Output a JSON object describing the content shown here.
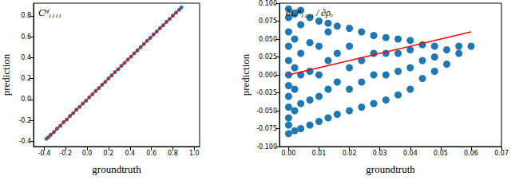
{
  "chart_data": [
    {
      "type": "scatter",
      "title": "Cᴴ₁₁₁₁",
      "xlabel": "groundtruth",
      "ylabel": "prediction",
      "xlim": [
        -0.5,
        1.05
      ],
      "ylim": [
        -0.45,
        0.92
      ],
      "xticks": [
        -0.4,
        -0.2,
        {
          "value": 0,
          "label": "0.0"
        },
        0.2,
        0.4,
        0.6,
        0.8,
        {
          "value": 1,
          "label": "1.0"
        }
      ],
      "yticks": [
        -0.4,
        -0.2,
        {
          "value": 0,
          "label": "0.0"
        },
        0.2,
        0.4,
        0.6,
        0.8
      ],
      "grid": false,
      "series": [
        {
          "type": "scatter",
          "color": "#1f77b4",
          "marker": "circle",
          "x": [
            -0.38,
            -0.36,
            -0.34,
            -0.31,
            -0.28,
            -0.25,
            -0.22,
            -0.19,
            -0.16,
            -0.13,
            -0.1,
            -0.07,
            -0.04,
            -0.01,
            0.02,
            0.05,
            0.08,
            0.11,
            0.14,
            0.17,
            0.2,
            0.23,
            0.26,
            0.29,
            0.32,
            0.35,
            0.38,
            0.41,
            0.44,
            0.47,
            0.5,
            0.53,
            0.56,
            0.59,
            0.62,
            0.65,
            0.68,
            0.71,
            0.74,
            0.77,
            0.8,
            0.83,
            0.86,
            0.88
          ],
          "values": [
            -0.375,
            -0.36,
            -0.338,
            -0.312,
            -0.279,
            -0.252,
            -0.218,
            -0.192,
            -0.158,
            -0.131,
            -0.098,
            -0.071,
            -0.039,
            -0.012,
            0.021,
            0.049,
            0.081,
            0.109,
            0.141,
            0.168,
            0.201,
            0.229,
            0.261,
            0.289,
            0.321,
            0.349,
            0.381,
            0.409,
            0.441,
            0.469,
            0.501,
            0.529,
            0.561,
            0.589,
            0.621,
            0.649,
            0.681,
            0.709,
            0.741,
            0.769,
            0.801,
            0.829,
            0.858,
            0.88
          ]
        },
        {
          "type": "line",
          "color": "#ff0000",
          "line_style": "solid",
          "x": [
            -0.38,
            0.87
          ],
          "values": [
            -0.38,
            0.87
          ]
        }
      ]
    },
    {
      "type": "scatter",
      "title": "∂Cᴴ₁₁₁₁ / ∂ρₑ",
      "xlabel": "groundtruth",
      "ylabel": "prediction",
      "xlim": [
        -0.003,
        0.07
      ],
      "ylim": [
        -0.1,
        0.1
      ],
      "xticks": [
        {
          "value": 0,
          "label": "0.00"
        },
        0.01,
        0.02,
        0.03,
        0.04,
        0.05,
        0.06,
        0.07
      ],
      "yticks": [
        {
          "value": -0.1,
          "label": "-0.100"
        },
        -0.075,
        {
          "value": -0.05,
          "label": "-0.050"
        },
        -0.025,
        {
          "value": 0,
          "label": "0.000"
        },
        0.025,
        {
          "value": 0.05,
          "label": "0.050"
        },
        0.075,
        {
          "value": 0.1,
          "label": "0.100"
        }
      ],
      "grid": false,
      "series": [
        {
          "type": "scatter",
          "color": "#1f77b4",
          "marker": "circle",
          "x": [
            0,
            0,
            0,
            0,
            0,
            0,
            0,
            0,
            0,
            0,
            0,
            0,
            0.002,
            0.002,
            0.002,
            0.002,
            0.002,
            0.002,
            0.004,
            0.004,
            0.004,
            0.004,
            0.004,
            0.004,
            0.007,
            0.007,
            0.007,
            0.007,
            0.007,
            0.01,
            0.01,
            0.01,
            0.01,
            0.01,
            0.013,
            0.013,
            0.013,
            0.013,
            0.013,
            0.016,
            0.016,
            0.016,
            0.016,
            0.02,
            0.02,
            0.02,
            0.02,
            0.02,
            0.024,
            0.024,
            0.024,
            0.024,
            0.028,
            0.028,
            0.028,
            0.028,
            0.032,
            0.032,
            0.032,
            0.032,
            0.036,
            0.036,
            0.036,
            0.036,
            0.04,
            0.04,
            0.04,
            0.04,
            0.044,
            0.044,
            0.044,
            0.048,
            0.048,
            0.048,
            0.052,
            0.052,
            0.056,
            0.056,
            0.06
          ],
          "values": [
            -0.082,
            -0.07,
            -0.06,
            -0.045,
            -0.03,
            -0.015,
            0,
            0.02,
            0.04,
            0.06,
            0.08,
            0.092,
            -0.078,
            -0.05,
            -0.02,
            0.01,
            0.05,
            0.085,
            -0.075,
            -0.04,
            0,
            0.03,
            0.07,
            0.09,
            -0.07,
            -0.035,
            0.005,
            0.045,
            0.08,
            -0.065,
            -0.03,
            0,
            0.04,
            0.075,
            -0.06,
            -0.02,
            0.02,
            0.06,
            0.072,
            -0.055,
            -0.01,
            0.03,
            0.068,
            -0.05,
            -0.02,
            0.01,
            0.04,
            0.065,
            -0.045,
            -0.01,
            0.02,
            0.06,
            -0.04,
            0,
            0.03,
            0.055,
            -0.035,
            0,
            0.03,
            0.052,
            -0.028,
            0.005,
            0.03,
            0.05,
            -0.02,
            0.01,
            0.035,
            0.048,
            -0.005,
            0.02,
            0.042,
            0.005,
            0.025,
            0.04,
            0.015,
            0.035,
            0.03,
            0.04,
            0.04
          ]
        },
        {
          "type": "line",
          "color": "#ff0000",
          "line_style": "solid",
          "x": [
            0,
            0.06
          ],
          "values": [
            0,
            0.06
          ]
        }
      ]
    }
  ]
}
